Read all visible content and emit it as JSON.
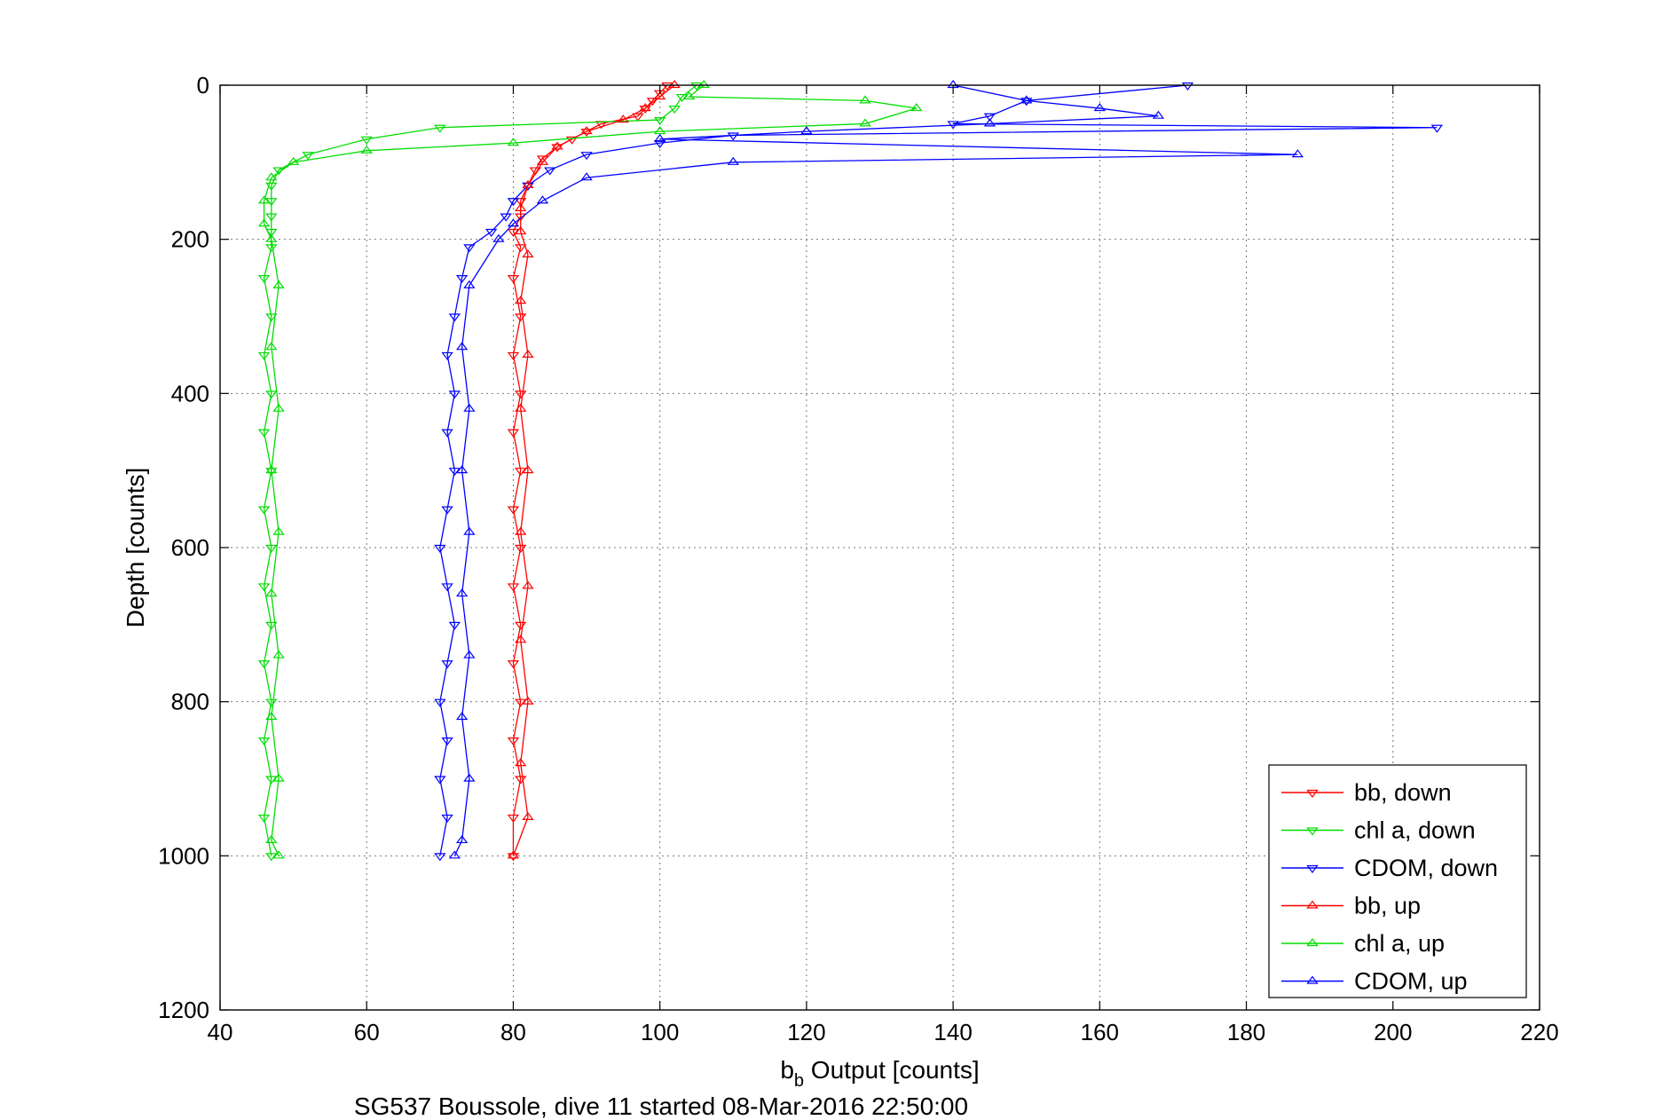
{
  "chart_data": {
    "type": "scatter",
    "xlabel_main": "b",
    "xlabel_sub": "b",
    "xlabel_rest": " Output [counts]",
    "ylabel": "Depth [counts]",
    "caption": "SG537 Boussole, dive 11 started 08-Mar-2016 22:50:00",
    "xlim": [
      40,
      220
    ],
    "ylim": [
      0,
      1200
    ],
    "y_reversed": true,
    "grid": true,
    "x_ticks": [
      "40",
      "60",
      "80",
      "100",
      "120",
      "140",
      "160",
      "180",
      "200",
      "220"
    ],
    "y_ticks": [
      "0",
      "200",
      "400",
      "600",
      "800",
      "1000",
      "1200"
    ],
    "legend_position": "bottom-right",
    "series": [
      {
        "name": "bb, down",
        "color": "#ff0000",
        "marker": "triangle-down",
        "points": [
          [
            101,
            0
          ],
          [
            100,
            10
          ],
          [
            99,
            20
          ],
          [
            98,
            30
          ],
          [
            97,
            40
          ],
          [
            92,
            50
          ],
          [
            90,
            60
          ],
          [
            88,
            70
          ],
          [
            86,
            80
          ],
          [
            84,
            95
          ],
          [
            83,
            110
          ],
          [
            82,
            130
          ],
          [
            81,
            150
          ],
          [
            81,
            170
          ],
          [
            80,
            190
          ],
          [
            81,
            210
          ],
          [
            80,
            250
          ],
          [
            81,
            300
          ],
          [
            80,
            350
          ],
          [
            81,
            400
          ],
          [
            80,
            450
          ],
          [
            81,
            500
          ],
          [
            80,
            550
          ],
          [
            81,
            600
          ],
          [
            80,
            650
          ],
          [
            81,
            700
          ],
          [
            80,
            750
          ],
          [
            81,
            800
          ],
          [
            80,
            850
          ],
          [
            81,
            900
          ],
          [
            80,
            950
          ],
          [
            80,
            1000
          ]
        ]
      },
      {
        "name": "chl a, down",
        "color": "#00dd00",
        "marker": "triangle-down",
        "points": [
          [
            105,
            0
          ],
          [
            103,
            15
          ],
          [
            102,
            30
          ],
          [
            100,
            45
          ],
          [
            70,
            55
          ],
          [
            60,
            70
          ],
          [
            52,
            90
          ],
          [
            48,
            110
          ],
          [
            47,
            130
          ],
          [
            47,
            150
          ],
          [
            47,
            170
          ],
          [
            47,
            190
          ],
          [
            47,
            210
          ],
          [
            46,
            250
          ],
          [
            47,
            300
          ],
          [
            46,
            350
          ],
          [
            47,
            400
          ],
          [
            46,
            450
          ],
          [
            47,
            500
          ],
          [
            46,
            550
          ],
          [
            47,
            600
          ],
          [
            46,
            650
          ],
          [
            47,
            700
          ],
          [
            46,
            750
          ],
          [
            47,
            800
          ],
          [
            46,
            850
          ],
          [
            47,
            900
          ],
          [
            46,
            950
          ],
          [
            47,
            1000
          ]
        ]
      },
      {
        "name": "CDOM, down",
        "color": "#0000ff",
        "marker": "triangle-down",
        "points": [
          [
            172,
            0
          ],
          [
            150,
            20
          ],
          [
            145,
            40
          ],
          [
            140,
            50
          ],
          [
            206,
            55
          ],
          [
            110,
            65
          ],
          [
            100,
            75
          ],
          [
            90,
            90
          ],
          [
            85,
            110
          ],
          [
            82,
            130
          ],
          [
            80,
            150
          ],
          [
            79,
            170
          ],
          [
            77,
            190
          ],
          [
            74,
            210
          ],
          [
            73,
            250
          ],
          [
            72,
            300
          ],
          [
            71,
            350
          ],
          [
            72,
            400
          ],
          [
            71,
            450
          ],
          [
            72,
            500
          ],
          [
            71,
            550
          ],
          [
            70,
            600
          ],
          [
            71,
            650
          ],
          [
            72,
            700
          ],
          [
            71,
            750
          ],
          [
            70,
            800
          ],
          [
            71,
            850
          ],
          [
            70,
            900
          ],
          [
            71,
            950
          ],
          [
            70,
            1000
          ]
        ]
      },
      {
        "name": "bb, up",
        "color": "#ff0000",
        "marker": "triangle-up",
        "points": [
          [
            102,
            0
          ],
          [
            100,
            15
          ],
          [
            98,
            30
          ],
          [
            95,
            45
          ],
          [
            90,
            60
          ],
          [
            86,
            80
          ],
          [
            84,
            100
          ],
          [
            82,
            130
          ],
          [
            81,
            160
          ],
          [
            81,
            190
          ],
          [
            82,
            220
          ],
          [
            81,
            280
          ],
          [
            82,
            350
          ],
          [
            81,
            420
          ],
          [
            82,
            500
          ],
          [
            81,
            580
          ],
          [
            82,
            650
          ],
          [
            81,
            720
          ],
          [
            82,
            800
          ],
          [
            81,
            880
          ],
          [
            82,
            950
          ],
          [
            80,
            1000
          ]
        ]
      },
      {
        "name": "chl a, up",
        "color": "#00dd00",
        "marker": "triangle-up",
        "points": [
          [
            106,
            0
          ],
          [
            104,
            15
          ],
          [
            128,
            20
          ],
          [
            135,
            30
          ],
          [
            128,
            50
          ],
          [
            100,
            60
          ],
          [
            80,
            75
          ],
          [
            60,
            85
          ],
          [
            50,
            100
          ],
          [
            47,
            120
          ],
          [
            46,
            150
          ],
          [
            46,
            180
          ],
          [
            47,
            200
          ],
          [
            48,
            260
          ],
          [
            47,
            340
          ],
          [
            48,
            420
          ],
          [
            47,
            500
          ],
          [
            48,
            580
          ],
          [
            47,
            660
          ],
          [
            48,
            740
          ],
          [
            47,
            820
          ],
          [
            48,
            900
          ],
          [
            47,
            980
          ],
          [
            48,
            1000
          ]
        ]
      },
      {
        "name": "CDOM, up",
        "color": "#0000ff",
        "marker": "triangle-up",
        "points": [
          [
            140,
            0
          ],
          [
            150,
            20
          ],
          [
            160,
            30
          ],
          [
            168,
            40
          ],
          [
            145,
            50
          ],
          [
            120,
            60
          ],
          [
            100,
            70
          ],
          [
            187,
            90
          ],
          [
            110,
            100
          ],
          [
            90,
            120
          ],
          [
            84,
            150
          ],
          [
            80,
            180
          ],
          [
            78,
            200
          ],
          [
            74,
            260
          ],
          [
            73,
            340
          ],
          [
            74,
            420
          ],
          [
            73,
            500
          ],
          [
            74,
            580
          ],
          [
            73,
            660
          ],
          [
            74,
            740
          ],
          [
            73,
            820
          ],
          [
            74,
            900
          ],
          [
            73,
            980
          ],
          [
            72,
            1000
          ]
        ]
      }
    ]
  }
}
